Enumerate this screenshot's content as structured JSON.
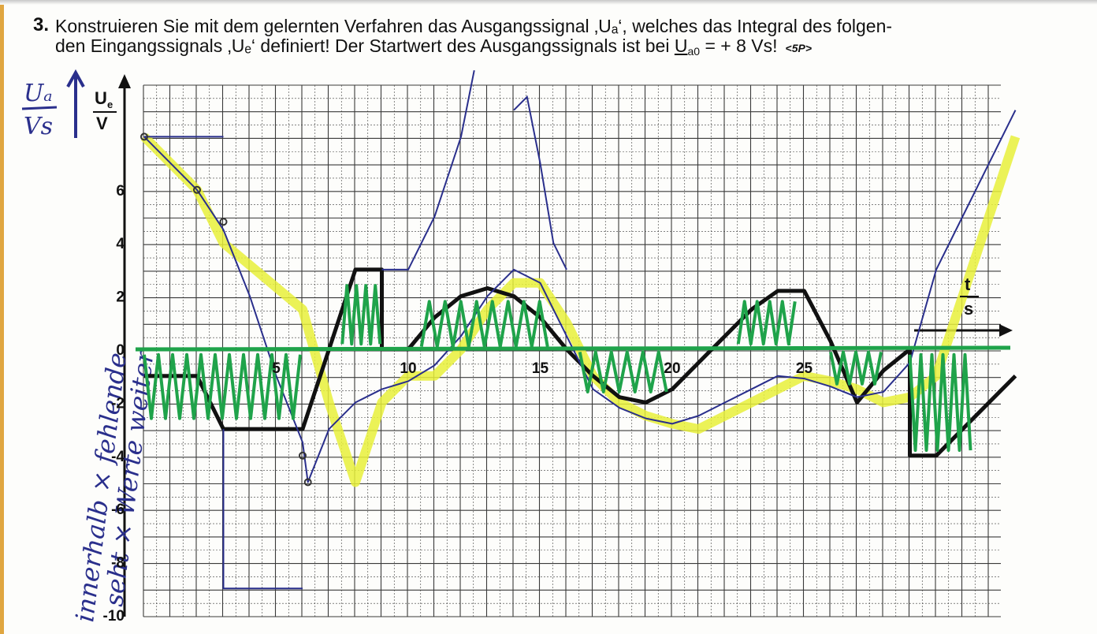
{
  "task": {
    "number": "3.",
    "line1": "Konstruieren Sie mit dem gelernten Verfahren das Ausgangssignal ‚Uₐ‘, welches das Integral des folgen-",
    "line2_a": "den Eingangssignals ‚Uₑ‘ definiert! Der Startwert des Ausgangssignals ist bei ",
    "line2_u": "U",
    "line2_sub": "a0",
    "line2_b": " = + 8 Vs!",
    "points": "<5P>"
  },
  "axes": {
    "y_label_num": "U",
    "y_label_sub": "e",
    "y_label_den": "V",
    "x_label_num": "t",
    "x_label_den": "s",
    "y_ticks": [
      "6",
      "4",
      "2",
      "0",
      "-2",
      "-4",
      "-6",
      "-8",
      "-10"
    ],
    "x_ticks": [
      "5",
      "10",
      "15",
      "20",
      "25"
    ]
  },
  "handwriting": {
    "output_label_num": "Uₐ",
    "output_label_den": "Vs",
    "note_1": "innerhalb × fehlende",
    "note_2": "seht × Werte weiter"
  },
  "colors": {
    "grid": "#3a3a3a",
    "input_signal": "#111111",
    "blue_pen": "#2a2f8c",
    "green_marker": "#1fa34a",
    "yellow_highlight": "#e8f03a"
  },
  "chart_data": {
    "type": "line",
    "x_range": [
      0,
      33
    ],
    "y_range": [
      -10,
      10
    ],
    "series": [
      {
        "x": [
          0,
          2,
          3,
          6,
          7,
          8,
          9,
          10,
          11,
          12,
          13,
          14,
          15,
          16,
          17,
          18,
          19,
          20,
          21,
          22,
          23,
          24,
          25,
          26,
          27,
          28,
          29,
          30,
          31,
          32,
          33
        ],
        "y": [
          8,
          6,
          4,
          1.5,
          -2,
          -5,
          -2,
          -1,
          -1,
          0,
          1.5,
          2.5,
          2.5,
          1,
          -1,
          -2,
          -2.5,
          -2.8,
          -3,
          -2.5,
          -2,
          -1.5,
          -1,
          -1.2,
          -1.5,
          -2,
          -1.8,
          -1,
          2,
          5,
          8
        ]
      }
    ]
  }
}
